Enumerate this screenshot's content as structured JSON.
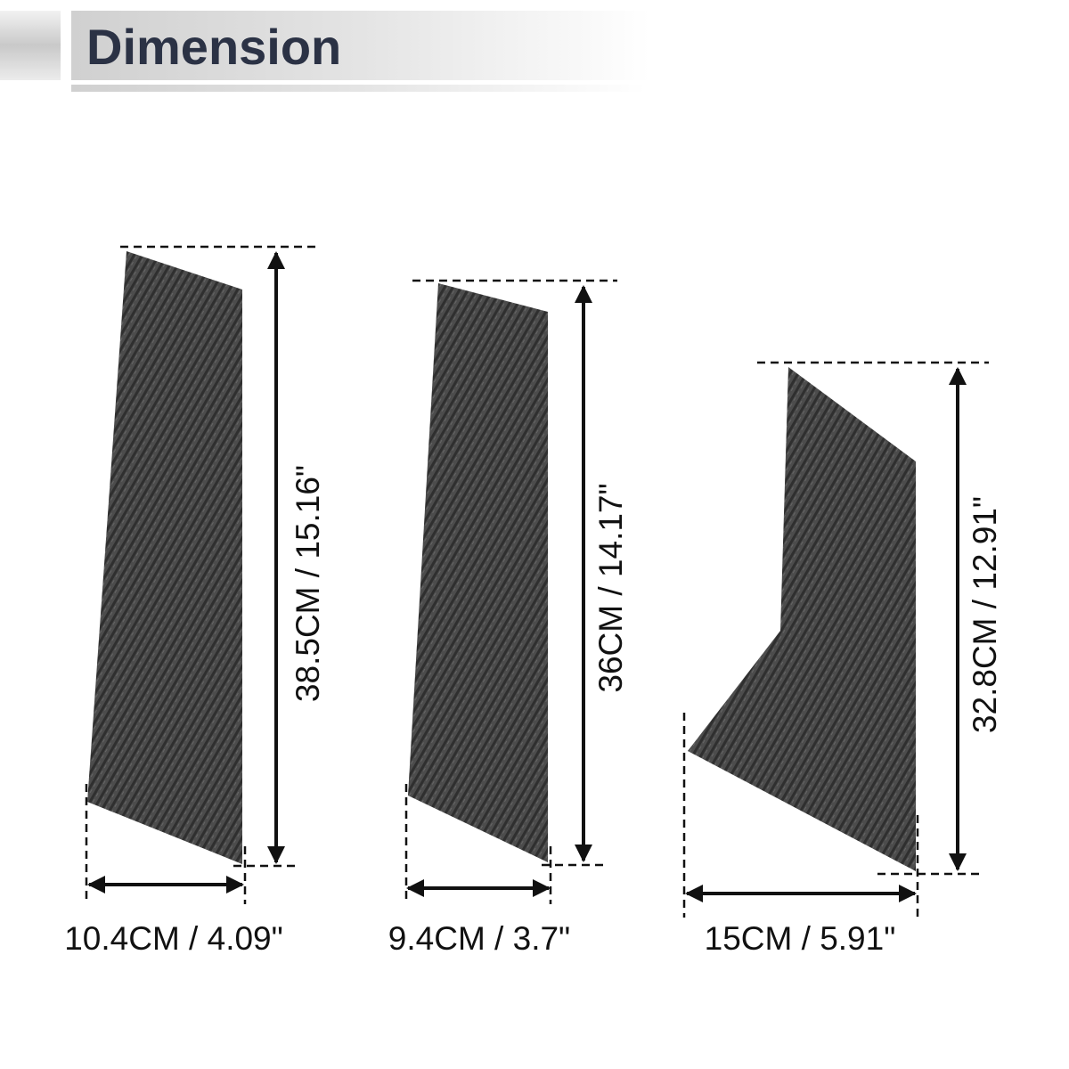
{
  "header": {
    "title": "Dimension"
  },
  "pieces": [
    {
      "width": "10.4CM / 4.09\"",
      "height": "38.5CM / 15.16\""
    },
    {
      "width": "9.4CM / 3.7\"",
      "height": "36CM / 14.17\""
    },
    {
      "width": "15CM / 5.91\"",
      "height": "32.8CM / 12.91\""
    }
  ]
}
